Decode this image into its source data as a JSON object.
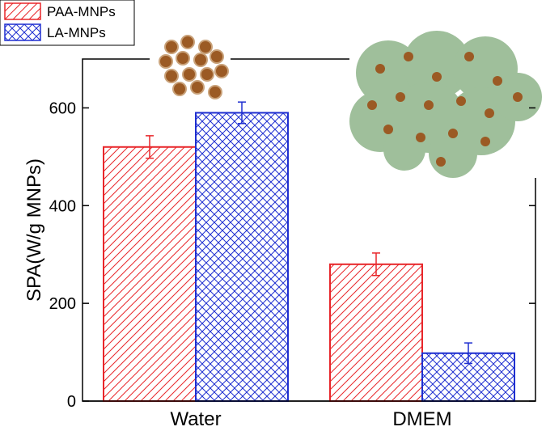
{
  "chart_data": {
    "type": "bar",
    "ylabel": "SPA(W/g MNPs)",
    "categories": [
      "Water",
      "DMEM"
    ],
    "series": [
      {
        "name": "PAA-MNPs",
        "color": "#e8262a",
        "hatch": "/",
        "values": [
          520,
          280
        ],
        "errors": [
          23,
          23
        ]
      },
      {
        "name": "LA-MNPs",
        "color": "#1f2fd0",
        "hatch": "x",
        "values": [
          590,
          98
        ],
        "errors": [
          22,
          21
        ]
      }
    ],
    "ylim": [
      0,
      700
    ],
    "yticks": [
      0,
      200,
      400,
      600
    ],
    "legend": "upper left"
  }
}
